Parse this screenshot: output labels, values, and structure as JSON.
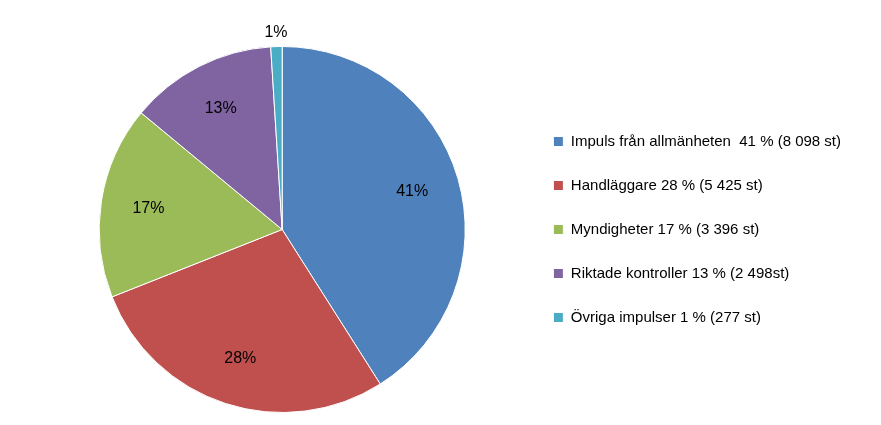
{
  "chart_data": {
    "type": "pie",
    "categories": [
      "Impuls från allmänheten  41 % (8 098 st)",
      "Handläggare 28 % (5 425 st)",
      "Myndigheter 17 % (3 396 st)",
      "Riktade kontroller 13 % (2 498st)",
      "Övriga impulser 1 % (277 st)"
    ],
    "values": [
      41,
      28,
      17,
      13,
      1
    ],
    "value_labels": [
      "41%",
      "28%",
      "17%",
      "13%",
      "1%"
    ],
    "colors": [
      "#4f81bd",
      "#c0504d",
      "#9bbb59",
      "#8064a2",
      "#4bacc6"
    ],
    "data_labels": true,
    "legend": "right"
  }
}
